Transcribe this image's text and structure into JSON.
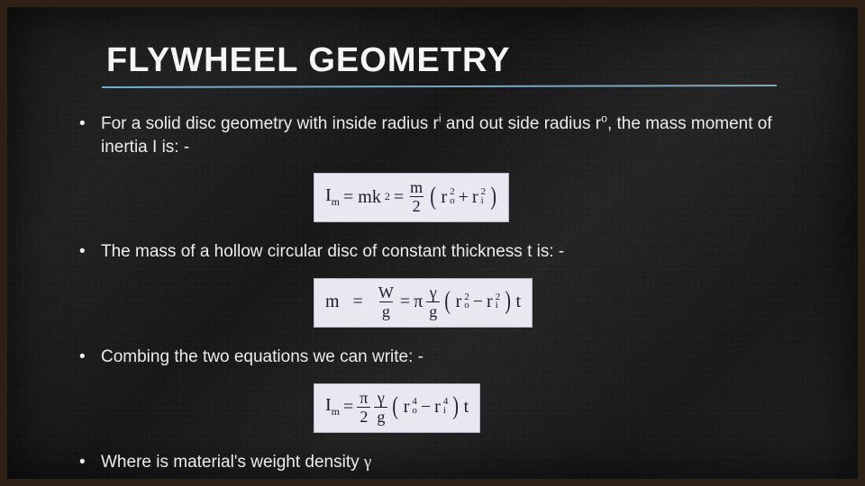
{
  "slide": {
    "title": "FLYWHEEL GEOMETRY",
    "underline_color": "#7fb8d8",
    "background_base": "#1a1a1a",
    "frame_color": "#2e2014",
    "text_color": "#ececec",
    "title_fontsize": 38,
    "body_fontsize": 19
  },
  "bullets": [
    {
      "text_before": "For a solid disc geometry with inside radius r",
      "sup1": "i",
      "text_mid": " and out side radius r",
      "sup2": "o",
      "text_after": ", the mass moment of inertia I is: -"
    },
    {
      "text": "The mass of a hollow circular disc of constant thickness t is: -"
    },
    {
      "text": "Combing the two equations we can write: -"
    },
    {
      "text_before": "Where is material's weight density ",
      "symbol": "γ"
    }
  ],
  "equations": {
    "background": "#e9e7f0",
    "text_color": "#1a1a2e",
    "font": "Times New Roman",
    "fontsize": 20,
    "eq1": {
      "lhs": "I",
      "lhs_sub": "m",
      "part1": "= mk",
      "part1_sup": "2",
      "eq": " = ",
      "frac_num": "m",
      "frac_den": "2",
      "r1": "r",
      "r1_sub": "o",
      "r1_sup": "2",
      "op": "+",
      "r2": "r",
      "r2_sub": "i",
      "r2_sup": "2"
    },
    "eq2": {
      "lhs": "m   =  ",
      "frac1_num": "W",
      "frac1_den": "g",
      "eq": " = ",
      "pi": "π",
      "frac2_num": "γ",
      "frac2_den": "g",
      "r1": "r",
      "r1_sub": "o",
      "r1_sup": "2",
      "op": "−",
      "r2": "r",
      "r2_sub": "i",
      "r2_sup": "2",
      "tail": "t"
    },
    "eq3": {
      "lhs": "I",
      "lhs_sub": "m",
      "eq": " = ",
      "frac1_num": "π",
      "frac1_den": "2",
      "frac2_num": "γ",
      "frac2_den": "g",
      "r1": "r",
      "r1_sub": "o",
      "r1_sup": "4",
      "op": "−",
      "r2": "r",
      "r2_sub": "i",
      "r2_sup": "4",
      "tail": "t"
    }
  }
}
